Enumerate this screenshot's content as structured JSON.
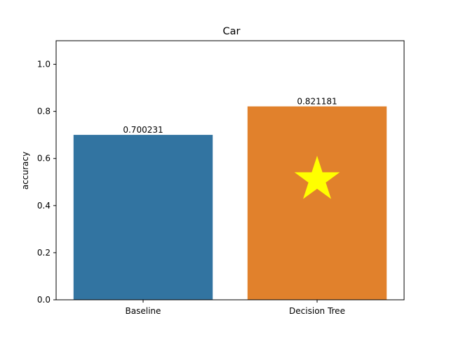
{
  "chart_data": {
    "type": "bar",
    "title": "Car",
    "xlabel": "",
    "ylabel": "accuracy",
    "categories": [
      "Baseline",
      "Decision Tree"
    ],
    "values": [
      0.700231,
      0.821181
    ],
    "value_labels": [
      "0.700231",
      "0.821181"
    ],
    "bar_colors": [
      "#3274a1",
      "#e1812c"
    ],
    "ylim": [
      0,
      1.1
    ],
    "yticks": [
      0.0,
      0.2,
      0.4,
      0.6,
      0.8,
      1.0
    ],
    "ytick_labels": [
      "0.0",
      "0.2",
      "0.4",
      "0.6",
      "0.8",
      "1.0"
    ],
    "grid": false,
    "legend": "none",
    "marker": {
      "icon": "star-icon",
      "category": "Decision Tree",
      "y": 0.51,
      "color": "#ffff00"
    }
  }
}
